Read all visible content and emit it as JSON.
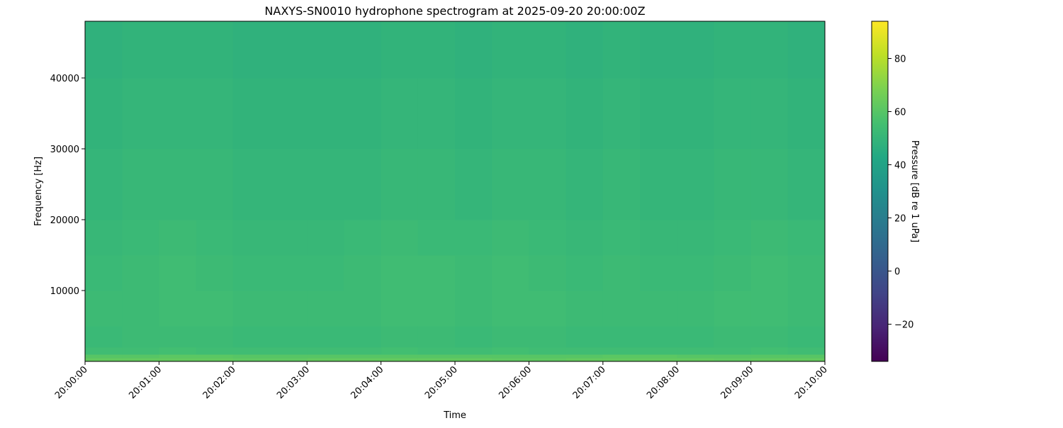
{
  "chart_data": {
    "type": "heatmap",
    "title": "NAXYS-SN0010 hydrophone spectrogram at 2025-09-20 20:00:00Z",
    "xlabel": "Time",
    "ylabel": "Frequency [Hz]",
    "colorbar_label": "Pressure [dB re 1 uPa]",
    "colormap": "viridis",
    "xlim": [
      "20:00:00",
      "20:10:00"
    ],
    "ylim": [
      0,
      48000
    ],
    "clim": [
      -34,
      94
    ],
    "x_ticks": [
      "20:00:00",
      "20:01:00",
      "20:02:00",
      "20:03:00",
      "20:04:00",
      "20:05:00",
      "20:06:00",
      "20:07:00",
      "20:08:00",
      "20:09:00",
      "20:10:00"
    ],
    "y_ticks": [
      10000,
      20000,
      30000,
      40000
    ],
    "colorbar_ticks": [
      -20,
      0,
      20,
      40,
      60,
      80
    ],
    "grid": false,
    "time_columns": [
      "20:00:00",
      "20:00:30",
      "20:01:00",
      "20:01:30",
      "20:02:00",
      "20:02:30",
      "20:03:00",
      "20:03:30",
      "20:04:00",
      "20:04:30",
      "20:05:00",
      "20:05:30",
      "20:06:00",
      "20:06:30",
      "20:07:00",
      "20:07:30",
      "20:08:00",
      "20:08:30",
      "20:09:00",
      "20:09:30"
    ],
    "frequency_band_edges": [
      0,
      500,
      1000,
      2000,
      5000,
      10000,
      15000,
      20000,
      30000,
      40000,
      48000
    ],
    "values_db": [
      [
        63,
        63,
        63,
        63,
        62,
        62,
        63,
        63,
        63,
        63,
        63,
        62,
        62,
        63,
        63,
        63,
        63,
        62,
        63,
        63
      ],
      [
        60,
        60,
        61,
        61,
        60,
        60,
        60,
        60,
        60,
        60,
        60,
        60,
        60,
        60,
        61,
        61,
        60,
        60,
        60,
        60
      ],
      [
        54,
        54,
        55,
        54,
        54,
        54,
        54,
        54,
        55,
        54,
        54,
        55,
        54,
        54,
        54,
        54,
        54,
        54,
        55,
        54
      ],
      [
        52,
        53,
        53,
        53,
        52,
        52,
        52,
        52,
        53,
        53,
        52,
        53,
        53,
        52,
        52,
        52,
        52,
        53,
        53,
        52
      ],
      [
        53,
        53,
        54,
        54,
        53,
        53,
        53,
        53,
        54,
        54,
        53,
        54,
        54,
        53,
        53,
        53,
        53,
        54,
        54,
        53
      ],
      [
        52,
        53,
        54,
        53,
        52,
        52,
        52,
        53,
        54,
        54,
        53,
        54,
        53,
        52,
        53,
        52,
        52,
        53,
        54,
        53
      ],
      [
        51,
        52,
        53,
        52,
        51,
        51,
        51,
        52,
        53,
        52,
        52,
        53,
        52,
        51,
        52,
        51,
        51,
        52,
        53,
        52
      ],
      [
        50,
        51,
        51,
        51,
        50,
        50,
        50,
        50,
        51,
        51,
        50,
        51,
        51,
        50,
        51,
        50,
        50,
        51,
        51,
        50
      ],
      [
        49,
        50,
        50,
        50,
        49,
        49,
        49,
        49,
        50,
        50,
        49,
        50,
        50,
        49,
        50,
        49,
        49,
        50,
        50,
        49
      ],
      [
        48,
        49,
        49,
        49,
        48,
        48,
        48,
        48,
        49,
        49,
        48,
        49,
        49,
        48,
        49,
        48,
        48,
        49,
        49,
        48
      ]
    ]
  }
}
